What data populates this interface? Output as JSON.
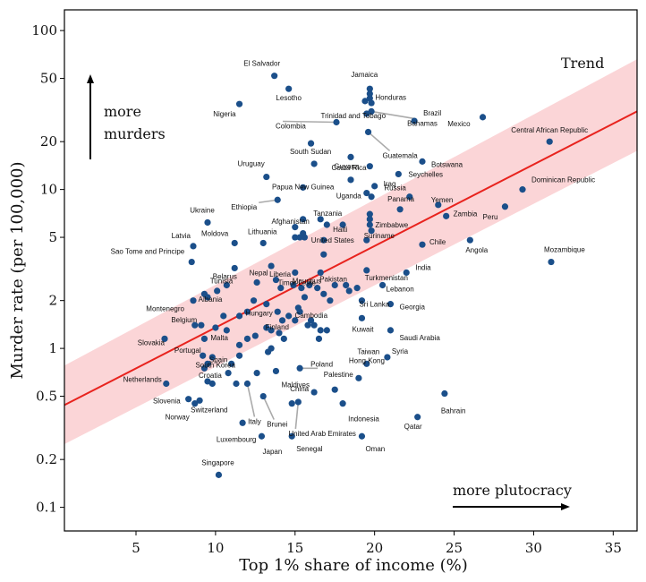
{
  "chart_data": {
    "type": "scatter",
    "xlabel": "Top 1% share of income (%)",
    "ylabel": "Murder rate (per 100,000)",
    "y_scale": "log",
    "xlim": [
      0.5,
      36.5
    ],
    "ylim": [
      0.071,
      135
    ],
    "xticks": [
      5,
      10,
      15,
      20,
      25,
      30,
      35
    ],
    "yticks": [
      0.1,
      0.2,
      0.5,
      1,
      2,
      5,
      10,
      20,
      50,
      100
    ],
    "ytick_labels": [
      "0.1",
      "0.2",
      "0.5",
      "1",
      "2",
      "5",
      "10",
      "20",
      "50",
      "100"
    ],
    "legend": "Trend",
    "legend_position": "top-right",
    "annotations": {
      "top_left": "more murders",
      "bottom_right": "more plutocracy"
    },
    "colors": {
      "points": "#1b4f8a",
      "trend": "#e8231e",
      "band": "#fbd5d7",
      "leader": "#aaaaaa"
    },
    "trend": {
      "x": [
        0.5,
        36.5
      ],
      "y": [
        0.44,
        31.0
      ],
      "band_lower": [
        0.25,
        17.5
      ],
      "band_upper": [
        0.78,
        66.0
      ]
    },
    "labeled_points": [
      {
        "name": "El Salvador",
        "x": 13.7,
        "y": 51.9
      },
      {
        "name": "Jamaica",
        "x": 19.7,
        "y": 43.0
      },
      {
        "name": "Lesotho",
        "x": 14.6,
        "y": 43.0
      },
      {
        "name": "Honduras",
        "x": 19.7,
        "y": 37.5
      },
      {
        "name": "Nigeria",
        "x": 11.5,
        "y": 34.5
      },
      {
        "name": "Brazil",
        "x": 22.5,
        "y": 27.0
      },
      {
        "name": "Mexico",
        "x": 26.8,
        "y": 28.5
      },
      {
        "name": "Trinidad and Tobago",
        "x": 19.5,
        "y": 30.0
      },
      {
        "name": "Bahamas",
        "x": 19.8,
        "y": 31.0
      },
      {
        "name": "Colombia",
        "x": 17.6,
        "y": 26.5
      },
      {
        "name": "Guatemala",
        "x": 19.6,
        "y": 23.0
      },
      {
        "name": "Central African Republic",
        "x": 31.0,
        "y": 20.0
      },
      {
        "name": "Botswana",
        "x": 23.0,
        "y": 15.0
      },
      {
        "name": "South Sudan",
        "x": 16.2,
        "y": 14.5
      },
      {
        "name": "Guyana",
        "x": 19.7,
        "y": 14.0
      },
      {
        "name": "Uruguay",
        "x": 13.2,
        "y": 12.0
      },
      {
        "name": "Costa Rica",
        "x": 18.5,
        "y": 11.5
      },
      {
        "name": "Seychelles",
        "x": 21.5,
        "y": 12.5
      },
      {
        "name": "Iraq",
        "x": 20.0,
        "y": 10.5
      },
      {
        "name": "Papua New Guinea",
        "x": 15.5,
        "y": 10.3
      },
      {
        "name": "Uganda",
        "x": 19.5,
        "y": 9.5
      },
      {
        "name": "Dominican Republic",
        "x": 29.3,
        "y": 10.0
      },
      {
        "name": "Russia",
        "x": 22.2,
        "y": 9.0
      },
      {
        "name": "Ethiopia",
        "x": 13.9,
        "y": 8.6
      },
      {
        "name": "Panama",
        "x": 21.6,
        "y": 7.5
      },
      {
        "name": "Yemen",
        "x": 24.0,
        "y": 8.0
      },
      {
        "name": "Afghanistan",
        "x": 15.5,
        "y": 6.5
      },
      {
        "name": "Tanzania",
        "x": 16.6,
        "y": 6.5
      },
      {
        "name": "Ukraine",
        "x": 9.5,
        "y": 6.2
      },
      {
        "name": "Zimbabwe",
        "x": 19.7,
        "y": 6.0
      },
      {
        "name": "Zambia",
        "x": 24.5,
        "y": 6.8
      },
      {
        "name": "Peru",
        "x": 28.2,
        "y": 7.8
      },
      {
        "name": "Haiti",
        "x": 18.0,
        "y": 6.0
      },
      {
        "name": "Latvia",
        "x": 8.6,
        "y": 4.4
      },
      {
        "name": "Moldova",
        "x": 11.2,
        "y": 4.6
      },
      {
        "name": "Lithuania",
        "x": 13.0,
        "y": 4.6
      },
      {
        "name": "United States",
        "x": 16.8,
        "y": 4.8
      },
      {
        "name": "Suriname",
        "x": 19.5,
        "y": 4.8
      },
      {
        "name": "Chile",
        "x": 23.0,
        "y": 4.5
      },
      {
        "name": "Angola",
        "x": 26.0,
        "y": 4.8
      },
      {
        "name": "Sao Tome and Principe",
        "x": 8.5,
        "y": 3.5
      },
      {
        "name": "Tunisia",
        "x": 11.2,
        "y": 3.2
      },
      {
        "name": "Liberia",
        "x": 13.5,
        "y": 3.3
      },
      {
        "name": "Timor-Leste",
        "x": 15.0,
        "y": 3.0
      },
      {
        "name": "Pakistan",
        "x": 16.6,
        "y": 3.0
      },
      {
        "name": "Turkmenistan",
        "x": 19.5,
        "y": 3.1
      },
      {
        "name": "India",
        "x": 22.0,
        "y": 3.0
      },
      {
        "name": "Mozambique",
        "x": 31.1,
        "y": 3.5
      },
      {
        "name": "Belarus",
        "x": 10.7,
        "y": 2.5
      },
      {
        "name": "Nepal",
        "x": 12.6,
        "y": 2.6
      },
      {
        "name": "Mauritius",
        "x": 15.9,
        "y": 2.5
      },
      {
        "name": "Lebanon",
        "x": 20.5,
        "y": 2.5
      },
      {
        "name": "Montenegro",
        "x": 8.6,
        "y": 2.0
      },
      {
        "name": "Albania",
        "x": 9.5,
        "y": 2.1
      },
      {
        "name": "Hungary",
        "x": 12.4,
        "y": 2.0
      },
      {
        "name": "Sri Lanka",
        "x": 19.2,
        "y": 2.0
      },
      {
        "name": "Georgia",
        "x": 21.0,
        "y": 1.9
      },
      {
        "name": "Cambodia",
        "x": 16.0,
        "y": 1.5
      },
      {
        "name": "Kuwait",
        "x": 19.2,
        "y": 1.55
      },
      {
        "name": "Belgium",
        "x": 8.7,
        "y": 1.4
      },
      {
        "name": "Malta",
        "x": 10.7,
        "y": 1.3
      },
      {
        "name": "Finland",
        "x": 13.2,
        "y": 1.35
      },
      {
        "name": "Saudi Arabia",
        "x": 21.0,
        "y": 1.3
      },
      {
        "name": "Slovakia",
        "x": 6.8,
        "y": 1.15
      },
      {
        "name": "Portugal",
        "x": 9.2,
        "y": 0.9
      },
      {
        "name": "Syria",
        "x": 20.8,
        "y": 0.88
      },
      {
        "name": "Taiwan",
        "x": 19.5,
        "y": 0.8
      },
      {
        "name": "South Korea",
        "x": 9.3,
        "y": 0.75
      },
      {
        "name": "Maldives",
        "x": 13.8,
        "y": 0.72
      },
      {
        "name": "Poland",
        "x": 15.3,
        "y": 0.75
      },
      {
        "name": "Spain",
        "x": 10.8,
        "y": 0.7
      },
      {
        "name": "Hong Kong",
        "x": 19.0,
        "y": 0.65
      },
      {
        "name": "Netherlands",
        "x": 6.9,
        "y": 0.6
      },
      {
        "name": "Croatia",
        "x": 9.5,
        "y": 0.62
      },
      {
        "name": "Palestine",
        "x": 17.5,
        "y": 0.55
      },
      {
        "name": "China",
        "x": 16.2,
        "y": 0.53
      },
      {
        "name": "Slovenia",
        "x": 8.3,
        "y": 0.48
      },
      {
        "name": "Switzerland",
        "x": 9.0,
        "y": 0.47
      },
      {
        "name": "Brunei",
        "x": 13.0,
        "y": 0.5
      },
      {
        "name": "Indonesia",
        "x": 18.0,
        "y": 0.45
      },
      {
        "name": "Bahrain",
        "x": 24.4,
        "y": 0.52
      },
      {
        "name": "Norway",
        "x": 8.7,
        "y": 0.45
      },
      {
        "name": "Italy",
        "x": 12.0,
        "y": 0.6
      },
      {
        "name": "United Arab Emirates",
        "x": 15.2,
        "y": 0.46
      },
      {
        "name": "Qatar",
        "x": 22.7,
        "y": 0.37
      },
      {
        "name": "Luxembourg",
        "x": 11.7,
        "y": 0.34
      },
      {
        "name": "Japan",
        "x": 12.9,
        "y": 0.28
      },
      {
        "name": "Senegal",
        "x": 14.8,
        "y": 0.28
      },
      {
        "name": "Oman",
        "x": 19.2,
        "y": 0.28
      },
      {
        "name": "Singapore",
        "x": 10.2,
        "y": 0.16
      }
    ],
    "unlabeled_points": [
      {
        "x": 19.7,
        "y": 40.0
      },
      {
        "x": 19.8,
        "y": 35.0
      },
      {
        "x": 19.4,
        "y": 36.0
      },
      {
        "x": 16.0,
        "y": 19.5
      },
      {
        "x": 18.5,
        "y": 16.0
      },
      {
        "x": 19.8,
        "y": 9.0
      },
      {
        "x": 19.7,
        "y": 7.0
      },
      {
        "x": 19.7,
        "y": 6.5
      },
      {
        "x": 19.8,
        "y": 5.5
      },
      {
        "x": 17.0,
        "y": 6.0
      },
      {
        "x": 15.0,
        "y": 5.8
      },
      {
        "x": 15.5,
        "y": 5.3
      },
      {
        "x": 15.0,
        "y": 5.0
      },
      {
        "x": 15.3,
        "y": 5.0
      },
      {
        "x": 15.6,
        "y": 5.0
      },
      {
        "x": 16.8,
        "y": 3.9
      },
      {
        "x": 13.8,
        "y": 2.7
      },
      {
        "x": 14.1,
        "y": 2.4
      },
      {
        "x": 14.9,
        "y": 2.5
      },
      {
        "x": 15.4,
        "y": 2.4
      },
      {
        "x": 15.6,
        "y": 2.1
      },
      {
        "x": 16.4,
        "y": 2.4
      },
      {
        "x": 16.8,
        "y": 2.2
      },
      {
        "x": 17.5,
        "y": 2.5
      },
      {
        "x": 18.2,
        "y": 2.5
      },
      {
        "x": 18.4,
        "y": 2.3
      },
      {
        "x": 18.9,
        "y": 2.4
      },
      {
        "x": 17.2,
        "y": 2.0
      },
      {
        "x": 10.1,
        "y": 2.3
      },
      {
        "x": 9.3,
        "y": 2.2
      },
      {
        "x": 9.1,
        "y": 1.4
      },
      {
        "x": 10.5,
        "y": 1.6
      },
      {
        "x": 11.5,
        "y": 1.6
      },
      {
        "x": 12.0,
        "y": 1.7
      },
      {
        "x": 13.2,
        "y": 1.9
      },
      {
        "x": 13.9,
        "y": 1.7
      },
      {
        "x": 14.2,
        "y": 1.5
      },
      {
        "x": 14.6,
        "y": 1.6
      },
      {
        "x": 15.3,
        "y": 1.7
      },
      {
        "x": 15.2,
        "y": 1.8
      },
      {
        "x": 15.0,
        "y": 1.5
      },
      {
        "x": 15.8,
        "y": 1.4
      },
      {
        "x": 16.6,
        "y": 1.3
      },
      {
        "x": 16.2,
        "y": 1.4
      },
      {
        "x": 17.0,
        "y": 1.3
      },
      {
        "x": 16.5,
        "y": 1.15
      },
      {
        "x": 9.3,
        "y": 1.15
      },
      {
        "x": 10.0,
        "y": 1.35
      },
      {
        "x": 11.5,
        "y": 1.05
      },
      {
        "x": 12.0,
        "y": 1.15
      },
      {
        "x": 12.5,
        "y": 1.2
      },
      {
        "x": 13.5,
        "y": 1.3
      },
      {
        "x": 14.3,
        "y": 1.15
      },
      {
        "x": 14.0,
        "y": 1.25
      },
      {
        "x": 13.3,
        "y": 0.95
      },
      {
        "x": 13.5,
        "y": 1.0
      },
      {
        "x": 9.8,
        "y": 0.88
      },
      {
        "x": 9.5,
        "y": 0.8
      },
      {
        "x": 11.0,
        "y": 0.8
      },
      {
        "x": 11.5,
        "y": 0.9
      },
      {
        "x": 12.6,
        "y": 0.7
      },
      {
        "x": 9.8,
        "y": 0.6
      },
      {
        "x": 11.3,
        "y": 0.6
      },
      {
        "x": 14.8,
        "y": 0.45
      }
    ]
  }
}
